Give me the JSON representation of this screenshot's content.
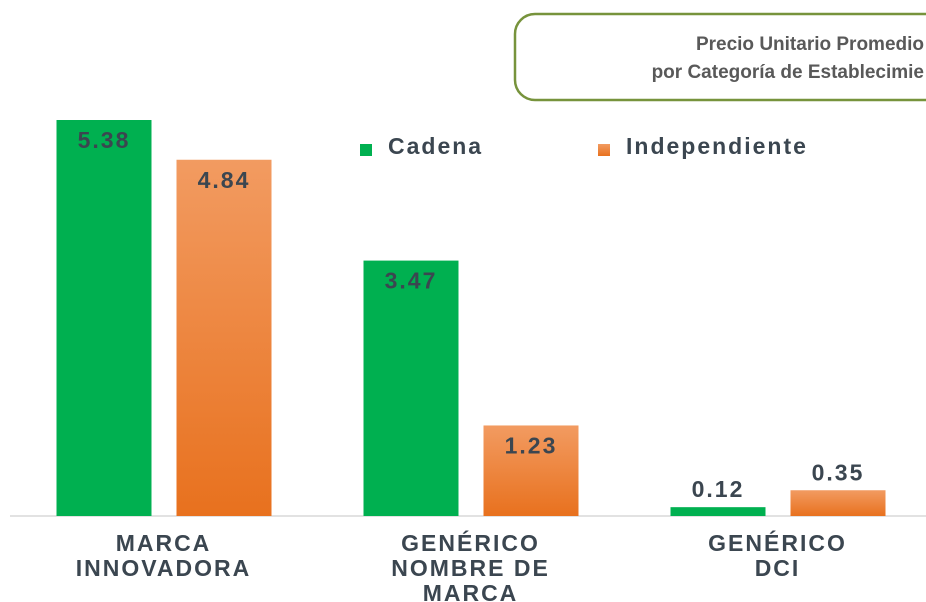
{
  "chart_data": {
    "type": "bar",
    "title": [
      "Precio Unitario Promedio",
      "por Categoría de Establecimie"
    ],
    "categories": [
      "MARCA INNOVADORA",
      "GENÉRICO NOMBRE DE MARCA",
      "GENÉRICO DCI"
    ],
    "series": [
      {
        "name": "Cadena",
        "color": "#00b050",
        "values": [
          5.38,
          3.47,
          0.12
        ]
      },
      {
        "name": "Independiente",
        "color": "#ef7b2a",
        "values": [
          4.84,
          1.23,
          0.35
        ]
      }
    ],
    "ylim": [
      0,
      5.38
    ],
    "legend": "top-right"
  }
}
